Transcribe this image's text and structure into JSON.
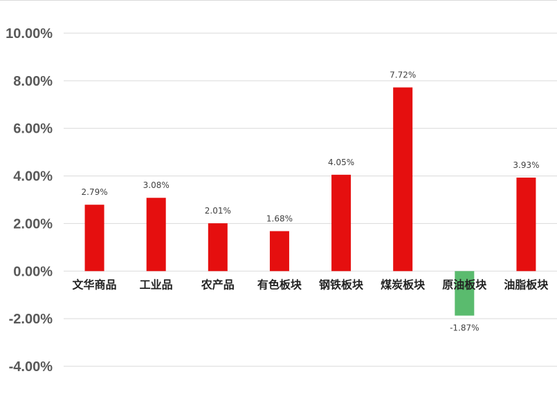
{
  "chart_data": {
    "type": "bar",
    "categories": [
      "文华商品",
      "工业品",
      "农产品",
      "有色板块",
      "钢铁板块",
      "煤炭板块",
      "原油板块",
      "油脂板块"
    ],
    "values": [
      2.79,
      3.08,
      2.01,
      1.68,
      4.05,
      7.72,
      -1.87,
      3.93
    ],
    "value_labels": [
      "2.79%",
      "3.08%",
      "2.01%",
      "1.68%",
      "4.05%",
      "7.72%",
      "-1.87%",
      "3.93%"
    ],
    "y_ticks": [
      "10.00%",
      "8.00%",
      "6.00%",
      "4.00%",
      "2.00%",
      "0.00%",
      "-2.00%",
      "-4.00%"
    ],
    "y_tick_values": [
      10,
      8,
      6,
      4,
      2,
      0,
      -2,
      -4
    ],
    "ylim": [
      -4,
      10
    ],
    "grid": true,
    "colors": {
      "positive": "#e50f0f",
      "negative": "#5abb6e"
    }
  }
}
